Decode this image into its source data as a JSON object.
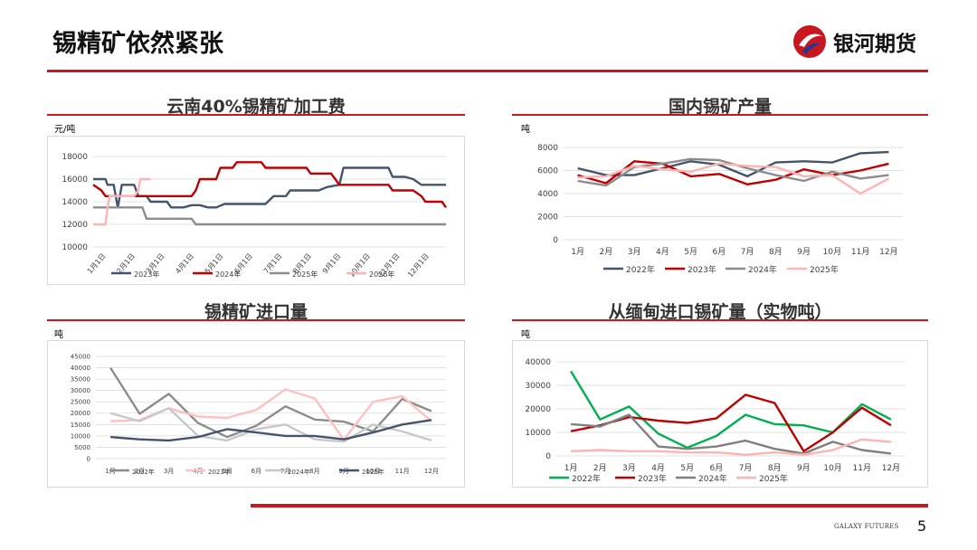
{
  "page": {
    "title": "锡精矿依然紧张",
    "brand_name": "银河期货",
    "footer_brand": "GALAXY FUTURES",
    "page_number": "5"
  },
  "colors": {
    "accent": "#c8171e",
    "c2022": "#44546a",
    "c2023": "#c00000",
    "c2024": "#8c8c8c",
    "c2025": "#ffb3b3",
    "green": "#00b050"
  },
  "chart_data": [
    {
      "id": "c1",
      "type": "line",
      "title": "云南40%锡精矿加工费",
      "ylabel": "元/吨",
      "ylim": [
        10000,
        18000
      ],
      "yticks": [
        10000,
        12000,
        14000,
        16000,
        18000
      ],
      "x_tick_labels": [
        "1月1日",
        "2月1日",
        "3月1日",
        "4月1日",
        "5月1日",
        "6月1日",
        "7月1日",
        "8月1日",
        "9月1日",
        "10月1日",
        "11月1日",
        "12月1日"
      ],
      "legend": [
        "2023年",
        "2024年",
        "2025年",
        "2026年"
      ],
      "series": [
        {
          "name": "2023年",
          "color": "#44546a",
          "values": [
            [
              0,
              16000
            ],
            [
              3,
              16000
            ],
            [
              3.5,
              15500
            ],
            [
              5,
              15500
            ],
            [
              6,
              13500
            ],
            [
              7,
              15500
            ],
            [
              10,
              15500
            ],
            [
              11,
              14500
            ],
            [
              13,
              14500
            ],
            [
              14,
              14000
            ],
            [
              18,
              14000
            ],
            [
              19,
              13500
            ],
            [
              22,
              13500
            ],
            [
              24,
              13700
            ],
            [
              26,
              13700
            ],
            [
              28,
              13500
            ],
            [
              30,
              13500
            ],
            [
              32,
              13800
            ],
            [
              40,
              13800
            ],
            [
              42,
              13800
            ],
            [
              44,
              14500
            ],
            [
              46,
              14500
            ],
            [
              47,
              14500
            ],
            [
              48,
              15000
            ],
            [
              55,
              15000
            ],
            [
              57,
              15300
            ],
            [
              60,
              15500
            ],
            [
              61,
              17000
            ],
            [
              70,
              17000
            ],
            [
              72,
              17000
            ],
            [
              73,
              16200
            ],
            [
              76,
              16200
            ],
            [
              78,
              16000
            ],
            [
              80,
              15500
            ],
            [
              84,
              15500
            ],
            [
              86,
              15500
            ]
          ]
        },
        {
          "name": "2024年",
          "color": "#c00000",
          "values": [
            [
              0,
              15500
            ],
            [
              2,
              15000
            ],
            [
              3,
              14500
            ],
            [
              6,
              14500
            ],
            [
              8,
              14500
            ],
            [
              10,
              14500
            ],
            [
              16,
              14500
            ],
            [
              22,
              14500
            ],
            [
              24,
              14500
            ],
            [
              25,
              15000
            ],
            [
              26,
              16000
            ],
            [
              30,
              16000
            ],
            [
              31,
              17000
            ],
            [
              34,
              17000
            ],
            [
              35,
              17500
            ],
            [
              41,
              17500
            ],
            [
              42,
              17000
            ],
            [
              50,
              17000
            ],
            [
              52,
              17000
            ],
            [
              53,
              16500
            ],
            [
              58,
              16500
            ],
            [
              59,
              16000
            ],
            [
              60,
              15500
            ],
            [
              70,
              15500
            ],
            [
              72,
              15500
            ],
            [
              73,
              15000
            ],
            [
              78,
              15000
            ],
            [
              80,
              14500
            ],
            [
              81,
              14000
            ],
            [
              83,
              14000
            ],
            [
              85,
              14000
            ],
            [
              86,
              13500
            ]
          ]
        },
        {
          "name": "2025年",
          "color": "#8c8c8c",
          "values": [
            [
              0,
              13500
            ],
            [
              12,
              13500
            ],
            [
              13,
              12500
            ],
            [
              14,
              12500
            ],
            [
              24,
              12500
            ],
            [
              25,
              12000
            ],
            [
              36,
              12000
            ],
            [
              60,
              12000
            ],
            [
              86,
              12000
            ]
          ]
        },
        {
          "name": "2026年",
          "color": "#ffb3b3",
          "values": [
            [
              0,
              12000
            ],
            [
              2,
              12000
            ],
            [
              3,
              12000
            ],
            [
              3.5,
              13500
            ],
            [
              4,
              14500
            ],
            [
              6,
              14500
            ],
            [
              8,
              14500
            ],
            [
              10,
              14500
            ],
            [
              11,
              15000
            ],
            [
              11.5,
              16000
            ],
            [
              13,
              16000
            ],
            [
              14,
              16000
            ]
          ]
        }
      ]
    },
    {
      "id": "c2",
      "type": "line",
      "title": "国内锡矿产量",
      "ylabel": "吨",
      "ylim": [
        0,
        8000
      ],
      "yticks": [
        0,
        2000,
        4000,
        6000,
        8000
      ],
      "categories": [
        "1月",
        "2月",
        "3月",
        "4月",
        "5月",
        "6月",
        "7月",
        "8月",
        "9月",
        "10月",
        "11月",
        "12月"
      ],
      "legend": [
        "2022年",
        "2023年",
        "2024年",
        "2025年"
      ],
      "series": [
        {
          "name": "2022年",
          "color": "#44546a",
          "values": [
            6200,
            5600,
            5600,
            6200,
            6800,
            6500,
            5500,
            6700,
            6800,
            6700,
            7500,
            7600
          ]
        },
        {
          "name": "2023年",
          "color": "#c00000",
          "values": [
            5600,
            4900,
            6800,
            6600,
            5500,
            5700,
            4800,
            5200,
            6100,
            5600,
            6000,
            6600
          ]
        },
        {
          "name": "2024年",
          "color": "#8c8c8c",
          "values": [
            5100,
            4700,
            6300,
            6600,
            7000,
            6900,
            6200,
            5600,
            5100,
            5900,
            5300,
            5600
          ]
        },
        {
          "name": "2025年",
          "color": "#ffb3b3",
          "values": [
            5400,
            5500,
            6400,
            6100,
            5900,
            6600,
            6400,
            6300,
            5500,
            5600,
            4000,
            5300
          ]
        }
      ]
    },
    {
      "id": "c3",
      "type": "line",
      "title": "锡精矿进口量",
      "ylabel": "吨",
      "ylim": [
        0,
        45000
      ],
      "yticks": [
        0,
        5000,
        10000,
        15000,
        20000,
        25000,
        30000,
        35000,
        40000,
        45000
      ],
      "categories": [
        "1月",
        "2月",
        "3月",
        "4月",
        "5月",
        "6月",
        "7月",
        "8月",
        "9月",
        "10月",
        "11月",
        "12月"
      ],
      "legend": [
        "2022年",
        "2023年",
        "2024年",
        "2025年"
      ],
      "series": [
        {
          "name": "2022年",
          "color": "#8c8c8c",
          "values": [
            40000,
            19700,
            28500,
            15700,
            9500,
            14500,
            23000,
            17200,
            16300,
            12000,
            26300,
            20900
          ]
        },
        {
          "name": "2023年",
          "color": "#ffc0c0",
          "values": [
            16500,
            17000,
            22200,
            18500,
            18000,
            21500,
            30500,
            26500,
            8300,
            25000,
            27500,
            16500
          ]
        },
        {
          "name": "2024年",
          "color": "#c8c8c8",
          "values": [
            20000,
            16500,
            22200,
            10000,
            8000,
            13000,
            15000,
            8500,
            7500,
            15000,
            12000,
            8000
          ]
        },
        {
          "name": "2025年",
          "color": "#44546a",
          "values": [
            9500,
            8500,
            8000,
            9500,
            13000,
            11500,
            10000,
            10000,
            8500,
            11500,
            15000,
            17000
          ]
        }
      ]
    },
    {
      "id": "c4",
      "type": "line",
      "title": "从缅甸进口锡矿量（实物吨）",
      "ylabel": "吨",
      "ylim": [
        0,
        40000
      ],
      "yticks": [
        0,
        10000,
        20000,
        30000,
        40000
      ],
      "categories": [
        "1月",
        "2月",
        "3月",
        "4月",
        "5月",
        "6月",
        "7月",
        "8月",
        "9月",
        "10月",
        "11月",
        "12月"
      ],
      "legend": [
        "2022年",
        "2023年",
        "2024年",
        "2025年"
      ],
      "series": [
        {
          "name": "2022年",
          "color": "#00b050",
          "values": [
            36000,
            15500,
            21000,
            9500,
            3500,
            8500,
            17500,
            13500,
            13000,
            10000,
            22000,
            15500
          ]
        },
        {
          "name": "2023年",
          "color": "#c00000",
          "values": [
            10500,
            13000,
            16500,
            15000,
            14000,
            16000,
            26000,
            22500,
            2000,
            10000,
            20500,
            13000
          ]
        },
        {
          "name": "2024年",
          "color": "#7f7f7f",
          "values": [
            13500,
            12500,
            17500,
            4000,
            3000,
            4000,
            6500,
            3000,
            1000,
            6000,
            2500,
            1000
          ]
        },
        {
          "name": "2025年",
          "color": "#ffb3b3",
          "values": [
            2000,
            2500,
            2000,
            2000,
            1500,
            1500,
            500,
            1500,
            500,
            2500,
            7000,
            6000
          ]
        }
      ]
    }
  ]
}
